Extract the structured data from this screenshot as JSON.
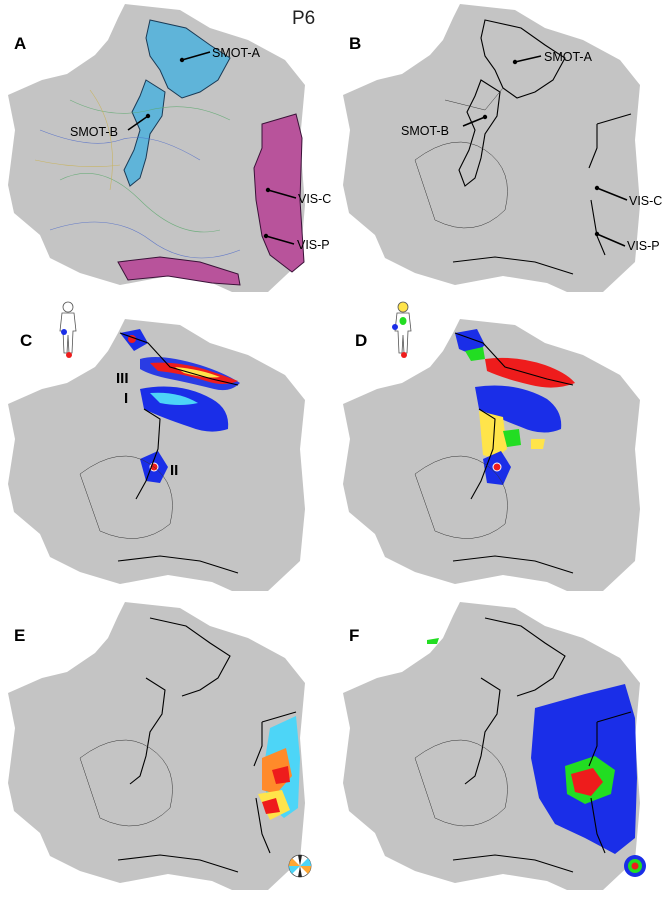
{
  "figure": {
    "title": "P6",
    "panels": [
      {
        "letter": "A"
      },
      {
        "letter": "B"
      },
      {
        "letter": "C"
      },
      {
        "letter": "D"
      },
      {
        "letter": "E"
      },
      {
        "letter": "F"
      }
    ],
    "region_labels": {
      "smot_a": "SMOT-A",
      "smot_b": "SMOT-B",
      "vis_c": "VIS-C",
      "vis_p": "VIS-P"
    },
    "cluster_labels": {
      "i": "I",
      "ii": "II",
      "iii": "III"
    },
    "colors": {
      "cortex": "#c4c4c4",
      "smot": "#5fb4d9",
      "vis": "#b8539b",
      "somato_head": "#ffe44a",
      "somato_hand": "#1a2ee8",
      "somato_trunk": "#22dd22",
      "somato_foot": "#ee1c1c",
      "ecc_center": "#ee1c1c",
      "ecc_mid": "#22dd22",
      "ecc_outer": "#1a2ee8"
    }
  }
}
